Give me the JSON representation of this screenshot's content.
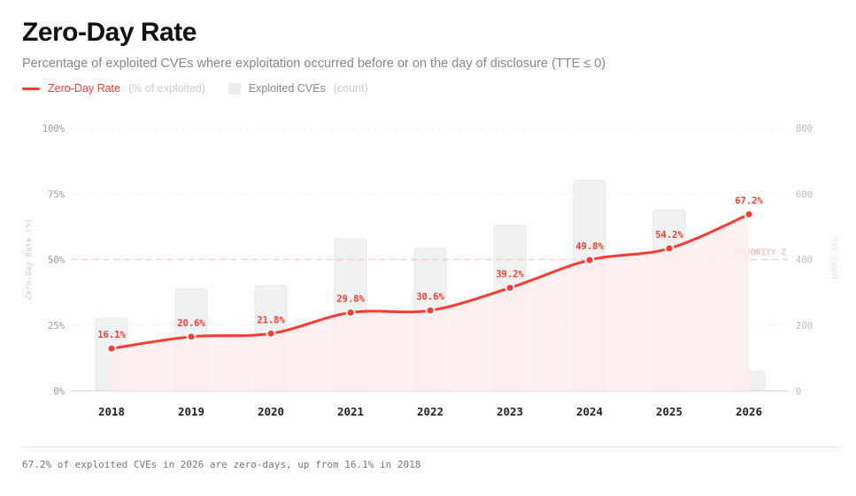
{
  "title": "Zero-Day Rate",
  "subtitle": "Percentage of exploited CVEs where exploitation occurred before or on the day of disclosure (TTE ≤ 0)",
  "legend": {
    "line_label": "Zero-Day Rate",
    "line_note": "(% of exploited)",
    "bar_label": "Exploited CVEs",
    "bar_note": "(count)"
  },
  "footer": "67.2% of exploited CVEs in 2026 are zero-days, up from 16.1% in 2018",
  "colors": {
    "line": "#ff3b30",
    "bar": "#f1f1f1",
    "area": "#ffeeed"
  },
  "chart_data": {
    "type": "bar+line",
    "title": "Zero-Day Rate",
    "categories": [
      "2018",
      "2019",
      "2020",
      "2021",
      "2022",
      "2023",
      "2024",
      "2025",
      "2026"
    ],
    "series": [
      {
        "name": "Zero-Day Rate",
        "axis": "left",
        "type": "line",
        "values": [
          16.1,
          20.6,
          21.8,
          29.8,
          30.6,
          39.2,
          49.8,
          54.2,
          67.2
        ],
        "labels": [
          "16.1%",
          "20.6%",
          "21.8%",
          "29.8%",
          "30.6%",
          "39.2%",
          "49.8%",
          "54.2%",
          "67.2%"
        ]
      },
      {
        "name": "Exploited CVEs",
        "axis": "right",
        "type": "bar",
        "values": [
          221,
          310,
          320,
          463,
          434,
          504,
          641,
          552,
          59
        ]
      }
    ],
    "ylabel": "Zero-Day Rate (%)",
    "y2label": "CVE Count",
    "ylim": [
      0,
      100
    ],
    "y2lim": [
      0,
      800
    ],
    "yticks": [
      "0%",
      "25%",
      "50%",
      "75%",
      "100%"
    ],
    "y2ticks": [
      "0",
      "200",
      "400",
      "600",
      "800"
    ],
    "reference_line": {
      "value": 50,
      "label": "MAJORITY Z"
    }
  }
}
